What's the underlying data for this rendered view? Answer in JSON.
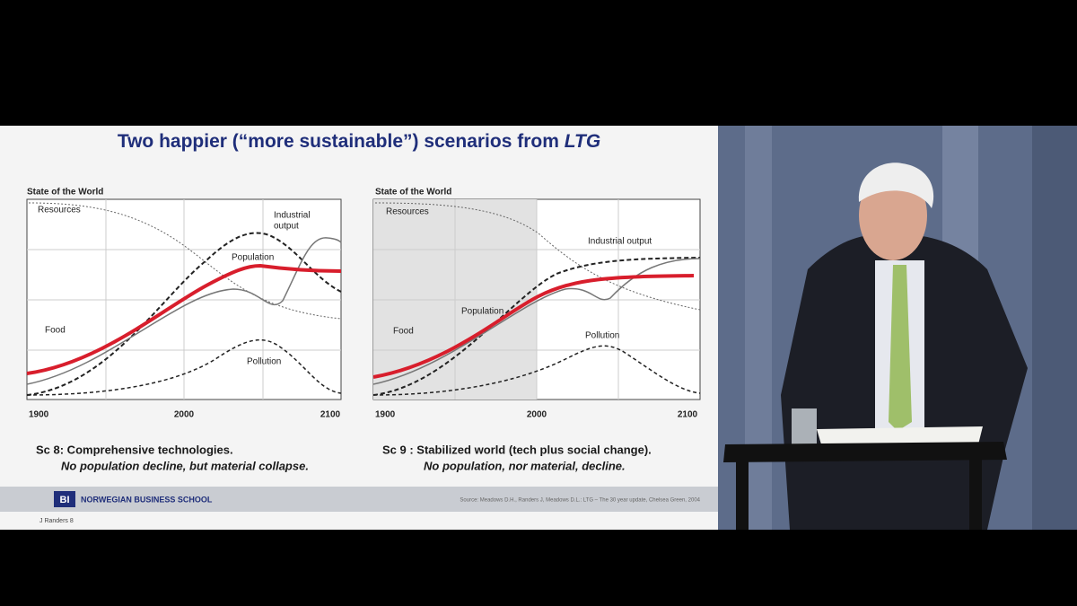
{
  "slide": {
    "title": "Two happier (“more sustainable”) scenarios from ",
    "title_emphasis": "LTG",
    "panels": [
      {
        "y_label": "State of the World",
        "resources": "Resources",
        "industrial_output": [
          "Industrial",
          "output"
        ],
        "population": "Population",
        "food": "Food",
        "pollution": "Pollution",
        "x_labels": [
          "1900",
          "2000",
          "2100"
        ],
        "caption": "Sc 8: Comprehensive technologies.",
        "subcaption": "No population decline, but material collapse."
      },
      {
        "y_label": "State of the World",
        "resources": "Resources",
        "industrial_output": [
          "Industrial output"
        ],
        "population": "Population",
        "food": "Food",
        "pollution": "Pollution",
        "x_labels": [
          "1900",
          "2000",
          "2100"
        ],
        "caption": "Sc 9 : Stabilized world (tech plus social change).",
        "subcaption": "No population, nor material, decline."
      }
    ],
    "footer": {
      "logo": "BI",
      "school": "NORWEGIAN BUSINESS SCHOOL",
      "source": "Source: Meadows D.H., Randers J, Meadows D.L.: LTG – The 30 year update, Chelsea Green, 2004",
      "page": "J Randers 8"
    }
  }
}
